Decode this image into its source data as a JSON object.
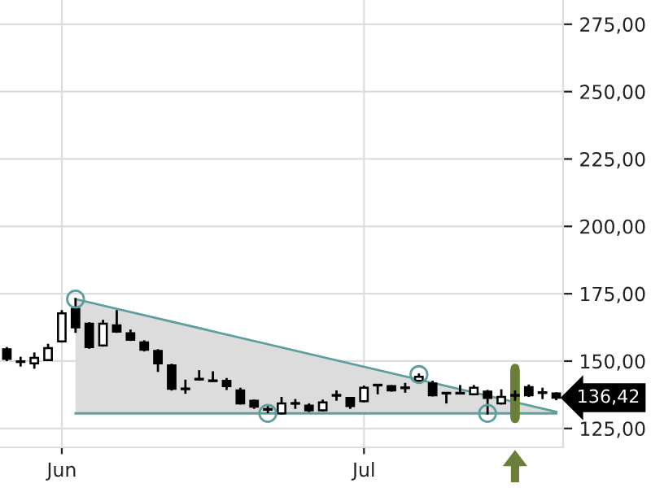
{
  "chart_data": {
    "type": "candlestick",
    "categories": [
      null,
      null,
      null,
      null,
      "Jun",
      null,
      null,
      null,
      null,
      null,
      null,
      null,
      null,
      null,
      null,
      null,
      null,
      null,
      null,
      null,
      null,
      null,
      null,
      null,
      null,
      null,
      "Jul",
      null,
      null,
      null,
      null,
      null,
      null,
      null,
      null,
      null,
      null,
      null,
      null,
      null,
      null
    ],
    "ohlc": [
      [
        154.4,
        154.8,
        150.4,
        150.8
      ],
      [
        149.8,
        151.2,
        148.4,
        149.8
      ],
      [
        149.2,
        152.8,
        147.6,
        151.2
      ],
      [
        150.4,
        156.0,
        150.4,
        154.8
      ],
      [
        157.3,
        168.5,
        157.3,
        167.7
      ],
      [
        169.4,
        173.0,
        160.9,
        162.5
      ],
      [
        163.9,
        164.0,
        155.0,
        155.2
      ],
      [
        155.8,
        164.9,
        155.8,
        163.9
      ],
      [
        163.3,
        168.5,
        160.9,
        160.9
      ],
      [
        160.3,
        161.3,
        157.9,
        157.9
      ],
      [
        156.9,
        157.3,
        154.0,
        154.2
      ],
      [
        153.8,
        154.0,
        146.4,
        149.2
      ],
      [
        148.4,
        148.6,
        139.5,
        139.7
      ],
      [
        139.7,
        142.7,
        138.3,
        139.7
      ],
      [
        143.3,
        146.2,
        143.3,
        143.3
      ],
      [
        142.7,
        145.8,
        142.7,
        142.7
      ],
      [
        142.7,
        143.3,
        139.7,
        140.7
      ],
      [
        139.1,
        139.7,
        134.3,
        134.3
      ],
      [
        135.3,
        135.3,
        132.7,
        133.1
      ],
      [
        132.1,
        133.1,
        131.1,
        132.1
      ],
      [
        130.6,
        136.3,
        130.6,
        134.3
      ],
      [
        134.3,
        135.5,
        132.7,
        134.3
      ],
      [
        133.5,
        133.9,
        131.5,
        131.7
      ],
      [
        131.7,
        135.3,
        131.7,
        134.7
      ],
      [
        137.3,
        138.7,
        135.7,
        137.3
      ],
      [
        136.3,
        136.3,
        132.7,
        133.3
      ],
      [
        135.1,
        140.5,
        135.1,
        140.1
      ],
      [
        141.1,
        141.1,
        138.1,
        141.1
      ],
      [
        140.7,
        140.7,
        139.1,
        139.1
      ],
      [
        140.1,
        141.5,
        138.7,
        140.1
      ],
      [
        142.7,
        145.0,
        142.5,
        144.2
      ],
      [
        141.7,
        142.3,
        137.3,
        137.3
      ],
      [
        138.1,
        138.1,
        134.7,
        138.1
      ],
      [
        138.1,
        140.7,
        138.1,
        138.1
      ],
      [
        137.7,
        140.7,
        137.7,
        140.1
      ],
      [
        138.7,
        138.9,
        130.6,
        136.3
      ],
      [
        134.3,
        139.1,
        134.3,
        136.7
      ],
      [
        137.3,
        138.7,
        135.7,
        137.3
      ],
      [
        140.3,
        140.9,
        137.1,
        137.3
      ],
      [
        138.3,
        139.7,
        136.3,
        138.3
      ],
      [
        138.0,
        138.0,
        135.9,
        136.42
      ]
    ],
    "series": [
      {
        "type": "line",
        "color": "#5f9ea0",
        "values": [
          null,
          null,
          null,
          null,
          null,
          173.0,
          null,
          null,
          null,
          null,
          null,
          null,
          null,
          null,
          null,
          null,
          null,
          null,
          null,
          null,
          null,
          null,
          null,
          null,
          null,
          null,
          null,
          null,
          null,
          null,
          null,
          null,
          null,
          null,
          null,
          null,
          null,
          null,
          null,
          null,
          131.2
        ]
      },
      {
        "type": "line",
        "color": "#5f9ea0",
        "values": [
          null,
          null,
          null,
          null,
          null,
          130.6,
          null,
          null,
          null,
          null,
          null,
          null,
          null,
          null,
          null,
          null,
          null,
          null,
          null,
          null,
          null,
          null,
          null,
          null,
          null,
          null,
          null,
          null,
          null,
          null,
          null,
          null,
          null,
          null,
          null,
          null,
          null,
          null,
          null,
          null,
          130.6
        ]
      },
      {
        "type": "scatter",
        "color": "#5f9ea0",
        "marker": "circle",
        "values": [
          null,
          null,
          null,
          null,
          null,
          173.0,
          null,
          null,
          null,
          null,
          null,
          null,
          null,
          null,
          null,
          null,
          null,
          null,
          null,
          130.6,
          null,
          null,
          null,
          null,
          null,
          null,
          null,
          null,
          null,
          null,
          145.0,
          null,
          null,
          null,
          null,
          130.6,
          null,
          null,
          null,
          null,
          null
        ]
      }
    ],
    "ylim": [
      118,
      284
    ],
    "yticks": [
      {
        "value": 125,
        "label": "125,00"
      },
      {
        "value": 150,
        "label": "150,00"
      },
      {
        "value": 175,
        "label": "175,00"
      },
      {
        "value": 200,
        "label": "200,00"
      },
      {
        "value": 225,
        "label": "225,00"
      },
      {
        "value": 250,
        "label": "250,00"
      },
      {
        "value": 275,
        "label": "275,00"
      }
    ],
    "annotations": [
      "136,42"
    ],
    "grid": true,
    "legend": false
  }
}
